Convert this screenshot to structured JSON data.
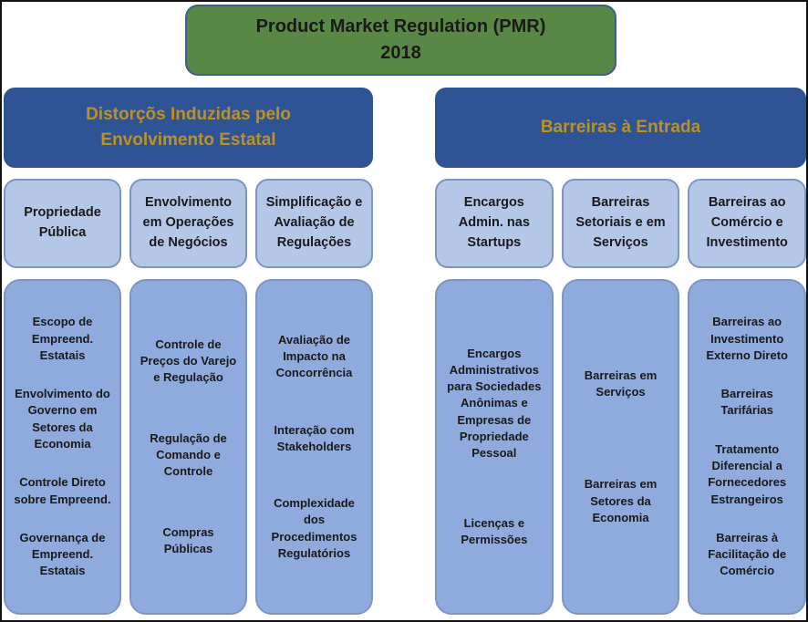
{
  "title": {
    "line1": "Product Market Regulation (PMR)",
    "line2": "2018"
  },
  "colors": {
    "green": "#598745",
    "dark_blue": "#2E5496",
    "gold": "#BE911E",
    "light_blue": "#B4C7E7",
    "medium_blue": "#8FAADC",
    "box_border": "#7E95BE",
    "title_border": "#3F5E8C",
    "text_dark": "#1A1A1A",
    "frame": "#121212"
  },
  "groups": [
    {
      "header": "Distorçõs Induzidas pelo Envolvimento Estatal",
      "columns": [
        {
          "subheader": "Propriedade Pública",
          "items": [
            "Escopo de Empreend. Estatais",
            "Envolvimento do Governo em Setores da Economia",
            "Controle Direto sobre Empreend.",
            "Governança de Empreend. Estatais"
          ]
        },
        {
          "subheader": "Envolvimento em Operações de Negócios",
          "items": [
            "Controle de Preços do Varejo e Regulação",
            "Regulação de Comando e Controle",
            "Compras Públicas"
          ]
        },
        {
          "subheader": "Simplificação e Avaliação de Regulações",
          "items": [
            "Avaliação de Impacto na Concorrência",
            "Interação com Stakeholders",
            "Complexidade dos Procedimentos Regulatórios"
          ]
        }
      ]
    },
    {
      "header": "Barreiras à Entrada",
      "columns": [
        {
          "subheader": "Encargos Admin. nas Startups",
          "items": [
            "Encargos Administrativos para Sociedades Anônimas e Empresas de Propriedade Pessoal",
            "Licenças e Permissões"
          ]
        },
        {
          "subheader": "Barreiras Setoriais e em Serviços",
          "items": [
            "Barreiras em Serviços",
            "Barreiras em Setores da Economia"
          ]
        },
        {
          "subheader": "Barreiras ao Comércio e Investimento",
          "items": [
            "Barreiras ao Investimento Externo Direto",
            "Barreiras Tarifárias",
            "Tratamento Diferencial a Fornecedores Estrangeiros",
            "Barreiras à Facilitação de Comércio"
          ]
        }
      ]
    }
  ]
}
